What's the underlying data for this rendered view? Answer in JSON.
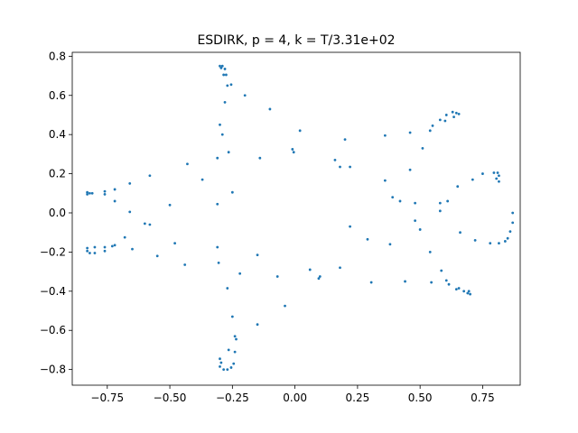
{
  "chart_data": {
    "type": "scatter",
    "title": "ESDIRK, p = 4, k = T/3.31e+02",
    "xlabel": "",
    "ylabel": "",
    "xlim": [
      -0.89,
      0.9
    ],
    "ylim": [
      -0.88,
      0.82
    ],
    "x_ticks": [
      -0.75,
      -0.5,
      -0.25,
      0.0,
      0.25,
      0.5,
      0.75
    ],
    "x_tick_labels": [
      "−0.75",
      "−0.50",
      "−0.25",
      "0.00",
      "0.25",
      "0.50",
      "0.75"
    ],
    "y_ticks": [
      -0.8,
      -0.6,
      -0.4,
      -0.2,
      0.0,
      0.2,
      0.4,
      0.6,
      0.8
    ],
    "y_tick_labels": [
      "−0.8",
      "−0.6",
      "−0.4",
      "−0.2",
      "0.0",
      "0.2",
      "0.4",
      "0.6",
      "0.8"
    ],
    "grid": false,
    "marker_color": "#1f77b4",
    "series": [
      {
        "points": [
          [
            -0.3,
            0.75
          ],
          [
            -0.295,
            0.74
          ],
          [
            -0.29,
            0.75
          ],
          [
            -0.28,
            0.735
          ],
          [
            -0.285,
            0.705
          ],
          [
            -0.275,
            0.705
          ],
          [
            -0.27,
            0.65
          ],
          [
            -0.255,
            0.655
          ],
          [
            -0.2,
            0.6
          ],
          [
            -0.28,
            0.565
          ],
          [
            -0.1,
            0.53
          ],
          [
            -0.3,
            0.45
          ],
          [
            -0.29,
            0.4
          ],
          [
            0.02,
            0.42
          ],
          [
            -0.01,
            0.325
          ],
          [
            -0.005,
            0.31
          ],
          [
            -0.31,
            0.28
          ],
          [
            -0.265,
            0.31
          ],
          [
            -0.14,
            0.28
          ],
          [
            -0.43,
            0.25
          ],
          [
            -0.37,
            0.17
          ],
          [
            -0.58,
            0.19
          ],
          [
            -0.66,
            0.15
          ],
          [
            -0.25,
            0.105
          ],
          [
            -0.31,
            0.045
          ],
          [
            -0.72,
            0.12
          ],
          [
            -0.72,
            0.06
          ],
          [
            -0.76,
            0.11
          ],
          [
            -0.76,
            0.095
          ],
          [
            -0.81,
            0.1
          ],
          [
            -0.82,
            0.1
          ],
          [
            -0.83,
            0.105
          ],
          [
            -0.83,
            0.095
          ],
          [
            -0.66,
            0.005
          ],
          [
            -0.5,
            0.04
          ],
          [
            -0.6,
            -0.055
          ],
          [
            -0.58,
            -0.06
          ],
          [
            -0.68,
            -0.125
          ],
          [
            -0.65,
            -0.185
          ],
          [
            -0.48,
            -0.155
          ],
          [
            -0.72,
            -0.165
          ],
          [
            -0.73,
            -0.17
          ],
          [
            -0.76,
            -0.175
          ],
          [
            -0.76,
            -0.195
          ],
          [
            -0.8,
            -0.175
          ],
          [
            -0.8,
            -0.205
          ],
          [
            -0.83,
            -0.18
          ],
          [
            -0.83,
            -0.195
          ],
          [
            -0.82,
            -0.205
          ],
          [
            -0.55,
            -0.22
          ],
          [
            -0.44,
            -0.265
          ],
          [
            -0.31,
            -0.175
          ],
          [
            -0.305,
            -0.255
          ],
          [
            -0.22,
            -0.31
          ],
          [
            -0.15,
            -0.215
          ],
          [
            -0.27,
            -0.385
          ],
          [
            -0.07,
            -0.325
          ],
          [
            -0.04,
            -0.475
          ],
          [
            -0.15,
            -0.57
          ],
          [
            -0.25,
            -0.53
          ],
          [
            -0.24,
            -0.63
          ],
          [
            -0.235,
            -0.645
          ],
          [
            -0.24,
            -0.71
          ],
          [
            -0.265,
            -0.7
          ],
          [
            -0.3,
            -0.745
          ],
          [
            -0.295,
            -0.765
          ],
          [
            -0.3,
            -0.785
          ],
          [
            -0.285,
            -0.8
          ],
          [
            -0.27,
            -0.8
          ],
          [
            -0.255,
            -0.79
          ],
          [
            -0.245,
            -0.77
          ],
          [
            0.06,
            -0.29
          ],
          [
            0.1,
            -0.325
          ],
          [
            0.095,
            -0.335
          ],
          [
            0.18,
            -0.28
          ],
          [
            0.22,
            -0.07
          ],
          [
            0.29,
            -0.135
          ],
          [
            0.305,
            -0.355
          ],
          [
            0.38,
            -0.16
          ],
          [
            0.44,
            -0.35
          ],
          [
            0.48,
            -0.04
          ],
          [
            0.5,
            -0.085
          ],
          [
            0.54,
            -0.2
          ],
          [
            0.545,
            -0.355
          ],
          [
            0.585,
            -0.295
          ],
          [
            0.605,
            -0.345
          ],
          [
            0.615,
            -0.365
          ],
          [
            0.645,
            -0.39
          ],
          [
            0.655,
            -0.385
          ],
          [
            0.675,
            -0.4
          ],
          [
            0.69,
            -0.41
          ],
          [
            0.695,
            -0.4
          ],
          [
            0.7,
            -0.415
          ],
          [
            0.66,
            -0.1
          ],
          [
            0.72,
            -0.14
          ],
          [
            0.78,
            -0.155
          ],
          [
            0.815,
            -0.155
          ],
          [
            0.84,
            -0.145
          ],
          [
            0.85,
            -0.13
          ],
          [
            0.86,
            -0.095
          ],
          [
            0.87,
            -0.05
          ],
          [
            0.87,
            0.0
          ],
          [
            0.81,
            0.205
          ],
          [
            0.815,
            0.19
          ],
          [
            0.805,
            0.175
          ],
          [
            0.815,
            0.16
          ],
          [
            0.795,
            0.205
          ],
          [
            0.75,
            0.2
          ],
          [
            0.71,
            0.17
          ],
          [
            0.65,
            0.135
          ],
          [
            0.61,
            0.06
          ],
          [
            0.58,
            0.05
          ],
          [
            0.48,
            0.05
          ],
          [
            0.46,
            0.22
          ],
          [
            0.46,
            0.41
          ],
          [
            0.51,
            0.33
          ],
          [
            0.54,
            0.42
          ],
          [
            0.55,
            0.445
          ],
          [
            0.58,
            0.475
          ],
          [
            0.605,
            0.5
          ],
          [
            0.63,
            0.515
          ],
          [
            0.645,
            0.51
          ],
          [
            0.655,
            0.505
          ],
          [
            0.635,
            0.49
          ],
          [
            0.6,
            0.47
          ],
          [
            0.58,
            0.01
          ],
          [
            0.42,
            0.06
          ],
          [
            0.39,
            0.08
          ],
          [
            0.36,
            0.165
          ],
          [
            0.36,
            0.395
          ],
          [
            0.2,
            0.375
          ],
          [
            0.16,
            0.27
          ],
          [
            0.18,
            0.235
          ],
          [
            0.22,
            0.235
          ]
        ]
      }
    ]
  }
}
